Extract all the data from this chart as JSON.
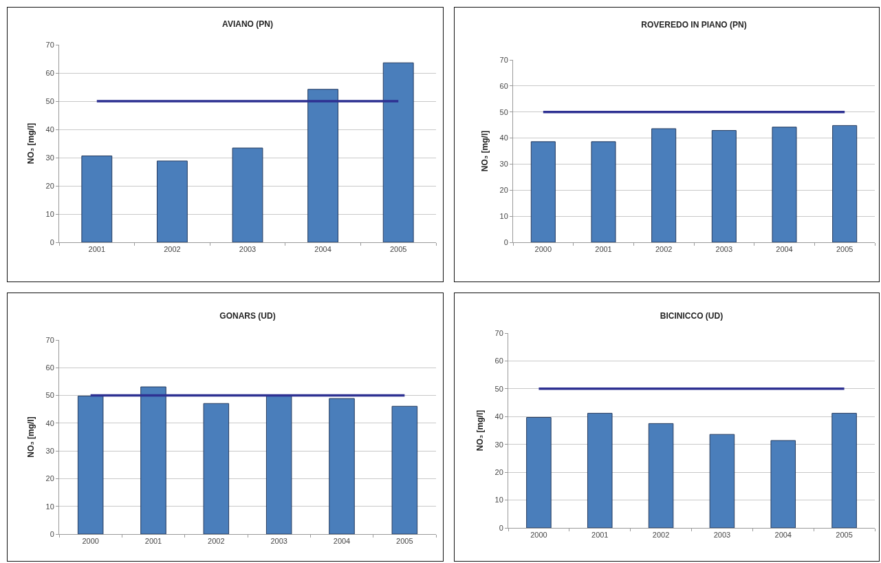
{
  "chart_data": [
    {
      "type": "bar",
      "title": "AVIANO (PN)",
      "ylabel": "NO₃ [mg/l]",
      "categories": [
        "2001",
        "2002",
        "2003",
        "2004",
        "2005"
      ],
      "series": [
        {
          "color": "#4a7ebb",
          "values": [
            30.6,
            28.8,
            33.4,
            54.2,
            63.6
          ]
        },
        {
          "type": "line",
          "color": "#2e3192",
          "values": [
            50,
            50,
            50,
            50,
            50
          ]
        }
      ],
      "ylim": [
        0,
        70
      ],
      "yticks": [
        0,
        10,
        20,
        30,
        40,
        50,
        60,
        70
      ],
      "grid": "y"
    },
    {
      "type": "bar",
      "title": "ROVEREDO IN PIANO (PN)",
      "ylabel": "NO₃ [mg/l]",
      "categories": [
        "2000",
        "2001",
        "2002",
        "2003",
        "2004",
        "2005"
      ],
      "series": [
        {
          "color": "#4a7ebb",
          "values": [
            38.6,
            38.6,
            43.6,
            42.9,
            44.2,
            44.8
          ]
        },
        {
          "type": "line",
          "color": "#2e3192",
          "values": [
            50,
            50,
            50,
            50,
            50,
            50
          ]
        }
      ],
      "ylim": [
        0,
        70
      ],
      "yticks": [
        0,
        10,
        20,
        30,
        40,
        50,
        60,
        70
      ],
      "grid": "y"
    },
    {
      "type": "bar",
      "title": "GONARS (UD)",
      "ylabel": "NO₃ [mg/l]",
      "categories": [
        "2000",
        "2001",
        "2002",
        "2003",
        "2004",
        "2005"
      ],
      "series": [
        {
          "color": "#4a7ebb",
          "values": [
            49.8,
            53.1,
            47.1,
            50.2,
            48.9,
            46.1
          ]
        },
        {
          "type": "line",
          "color": "#2e3192",
          "values": [
            50,
            50,
            50,
            50,
            50,
            50
          ]
        }
      ],
      "ylim": [
        0,
        70
      ],
      "yticks": [
        0,
        10,
        20,
        30,
        40,
        50,
        60,
        70
      ],
      "grid": "y"
    },
    {
      "type": "bar",
      "title": "BICINICCO (UD)",
      "ylabel": "NO₃ [mg/l]",
      "categories": [
        "2000",
        "2001",
        "2002",
        "2003",
        "2004",
        "2005"
      ],
      "series": [
        {
          "color": "#4a7ebb",
          "values": [
            39.7,
            41.2,
            37.5,
            33.6,
            31.4,
            41.2
          ]
        },
        {
          "type": "line",
          "color": "#2e3192",
          "values": [
            50,
            50,
            50,
            50,
            50,
            50
          ]
        }
      ],
      "ylim": [
        0,
        70
      ],
      "yticks": [
        0,
        10,
        20,
        30,
        40,
        50,
        60,
        70
      ],
      "grid": "y"
    }
  ]
}
